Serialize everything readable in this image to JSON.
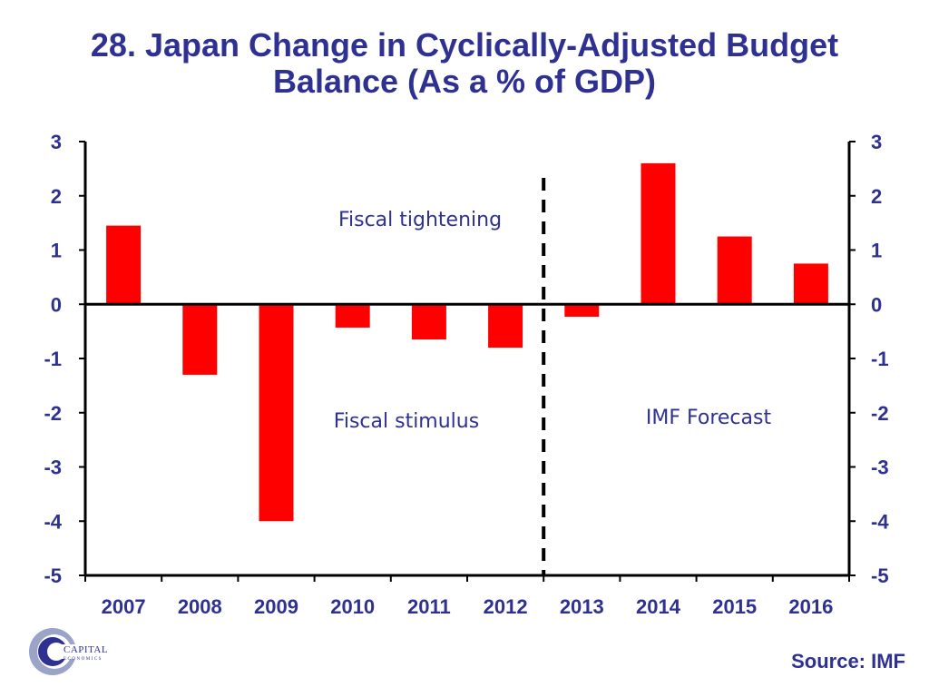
{
  "title_line1": "28. Japan Change in Cyclically-Adjusted Budget",
  "title_line2": "Balance (As a % of GDP)",
  "source": "Source: IMF",
  "logo": {
    "text": "CAPITAL",
    "subtext": "ECONOMICS"
  },
  "chart_data": {
    "type": "bar",
    "title": "28. Japan Change in Cyclically-Adjusted Budget Balance (As a % of GDP)",
    "categories": [
      "2007",
      "2008",
      "2009",
      "2010",
      "2011",
      "2012",
      "2013",
      "2014",
      "2015",
      "2016"
    ],
    "values": [
      1.45,
      -1.3,
      -4.0,
      -0.43,
      -0.65,
      -0.8,
      -0.23,
      2.6,
      1.25,
      0.75
    ],
    "ylim": [
      -5,
      3
    ],
    "yticks": [
      "-5",
      "-4",
      "-3",
      "-2",
      "-1",
      "0",
      "1",
      "2",
      "3"
    ],
    "secondary_yaxis": true,
    "bar_color": "#ff0000",
    "text_color": "#2e3192",
    "forecast_divider_between": [
      "2012",
      "2013"
    ],
    "annotations": {
      "tightening": "Fiscal tightening",
      "stimulus": "Fiscal stimulus",
      "forecast": "IMF Forecast"
    },
    "grid": false
  }
}
